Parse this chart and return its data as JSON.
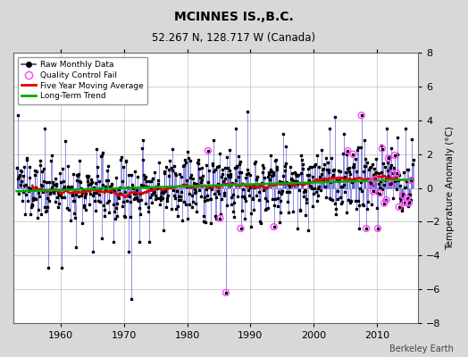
{
  "title": "MCINNES IS.,B.C.",
  "subtitle": "52.267 N, 128.717 W (Canada)",
  "ylabel": "Temperature Anomaly (°C)",
  "attribution": "Berkeley Earth",
  "ylim": [
    -8,
    8
  ],
  "xlim": [
    1952.5,
    2016.5
  ],
  "xticks": [
    1960,
    1970,
    1980,
    1990,
    2000,
    2010
  ],
  "yticks": [
    -8,
    -6,
    -4,
    -2,
    0,
    2,
    4,
    6,
    8
  ],
  "bg_color": "#d8d8d8",
  "plot_bg_color": "#ffffff",
  "grid_color": "#bbbbbb",
  "raw_line_color": "#3333cc",
  "raw_marker_color": "#000000",
  "moving_avg_color": "#dd0000",
  "trend_color": "#00aa00",
  "qc_fail_color": "#ff44ff",
  "legend_entries": [
    "Raw Monthly Data",
    "Quality Control Fail",
    "Five Year Moving Average",
    "Long-Term Trend"
  ],
  "seed": 137
}
